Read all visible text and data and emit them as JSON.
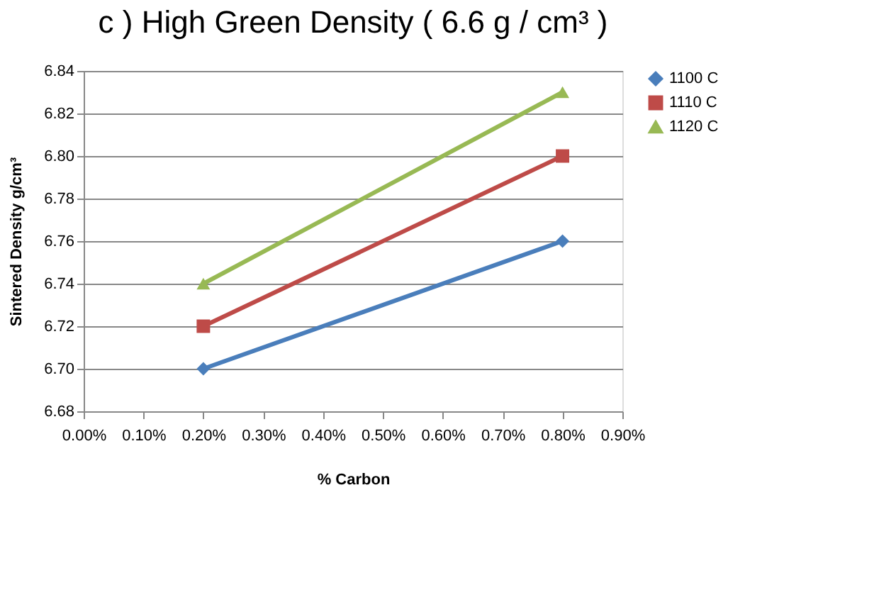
{
  "chart_data": {
    "type": "line",
    "title": "c ) High Green Density ( 6.6 g / cm³ )",
    "xlabel": "% Carbon",
    "ylabel": "Sintered Density g/cm³",
    "x": [
      0.2,
      0.8
    ],
    "series": [
      {
        "name": "1100 C",
        "color": "#4a7ebb",
        "marker": "diamond",
        "values": [
          6.7,
          6.76
        ]
      },
      {
        "name": "1110 C",
        "color": "#be4b48",
        "marker": "square",
        "values": [
          6.72,
          6.8
        ]
      },
      {
        "name": "1120 C",
        "color": "#98b954",
        "marker": "triangle",
        "values": [
          6.74,
          6.83
        ]
      }
    ],
    "xlim": [
      0,
      0.9
    ],
    "xticks": [
      {
        "value": 0,
        "label": "0.00%"
      },
      {
        "value": 0.1,
        "label": "0.10%"
      },
      {
        "value": 0.2,
        "label": "0.20%"
      },
      {
        "value": 0.3,
        "label": "0.30%"
      },
      {
        "value": 0.4,
        "label": "0.40%"
      },
      {
        "value": 0.5,
        "label": "0.50%"
      },
      {
        "value": 0.6,
        "label": "0.60%"
      },
      {
        "value": 0.7,
        "label": "0.70%"
      },
      {
        "value": 0.8,
        "label": "0.80%"
      },
      {
        "value": 0.9,
        "label": "0.90%"
      }
    ],
    "ylim": [
      6.68,
      6.84
    ],
    "yticks": [
      {
        "value": 6.68,
        "label": "6.68"
      },
      {
        "value": 6.7,
        "label": "6.70"
      },
      {
        "value": 6.72,
        "label": "6.72"
      },
      {
        "value": 6.74,
        "label": "6.74"
      },
      {
        "value": 6.76,
        "label": "6.76"
      },
      {
        "value": 6.78,
        "label": "6.78"
      },
      {
        "value": 6.8,
        "label": "6.80"
      },
      {
        "value": 6.82,
        "label": "6.82"
      },
      {
        "value": 6.84,
        "label": "6.84"
      }
    ],
    "grid": "y",
    "legend": "right",
    "line_style": "solid"
  }
}
